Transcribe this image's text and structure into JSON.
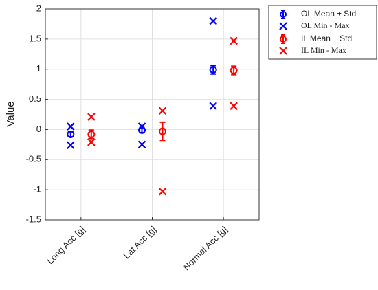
{
  "chart_data": {
    "type": "errorbar",
    "ylabel": "Value",
    "categories": [
      "Long Acc [g]",
      "Lat Acc [g]",
      "Normal Acc [g]"
    ],
    "ylim": [
      -1.5,
      2
    ],
    "yticks": [
      -1.5,
      -1,
      -0.5,
      0,
      0.5,
      1,
      1.5,
      2
    ],
    "grid": true,
    "legend": "outside-upper-right",
    "series": [
      {
        "name": "OL Mean ± Std",
        "color": "#0000ff",
        "kind": "mean",
        "values": [
          -0.08,
          -0.01,
          0.99
        ],
        "errors": [
          0.04,
          0.04,
          0.07
        ]
      },
      {
        "name": "OL Min - Max",
        "color": "#0000ff",
        "kind": "range",
        "min": [
          -0.26,
          -0.25,
          0.39
        ],
        "max": [
          0.05,
          0.05,
          1.8
        ]
      },
      {
        "name": "IL Mean ± Std",
        "color": "#ff0000",
        "kind": "mean",
        "values": [
          -0.08,
          -0.03,
          0.98
        ],
        "errors": [
          0.07,
          0.15,
          0.07
        ]
      },
      {
        "name": "IL Min - Max",
        "color": "#ff0000",
        "kind": "range",
        "min": [
          -0.21,
          -1.03,
          0.39
        ],
        "max": [
          0.21,
          0.31,
          1.47
        ]
      }
    ]
  }
}
